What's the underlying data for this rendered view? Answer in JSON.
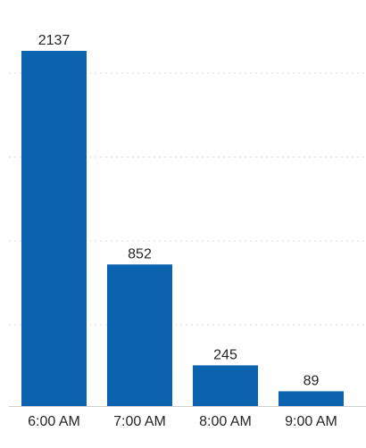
{
  "chart_data": {
    "type": "bar",
    "title": "",
    "xlabel": "",
    "ylabel": "",
    "categories": [
      "6:00 AM",
      "7:00 AM",
      "8:00 AM",
      "9:00 AM"
    ],
    "values": [
      2137,
      852,
      245,
      89
    ],
    "ylim": [
      0,
      2137
    ],
    "grid": true,
    "legend": "none",
    "colors": {
      "bar": "#0b63b0",
      "grid": "#d9d9d9",
      "text": "#252525"
    }
  }
}
